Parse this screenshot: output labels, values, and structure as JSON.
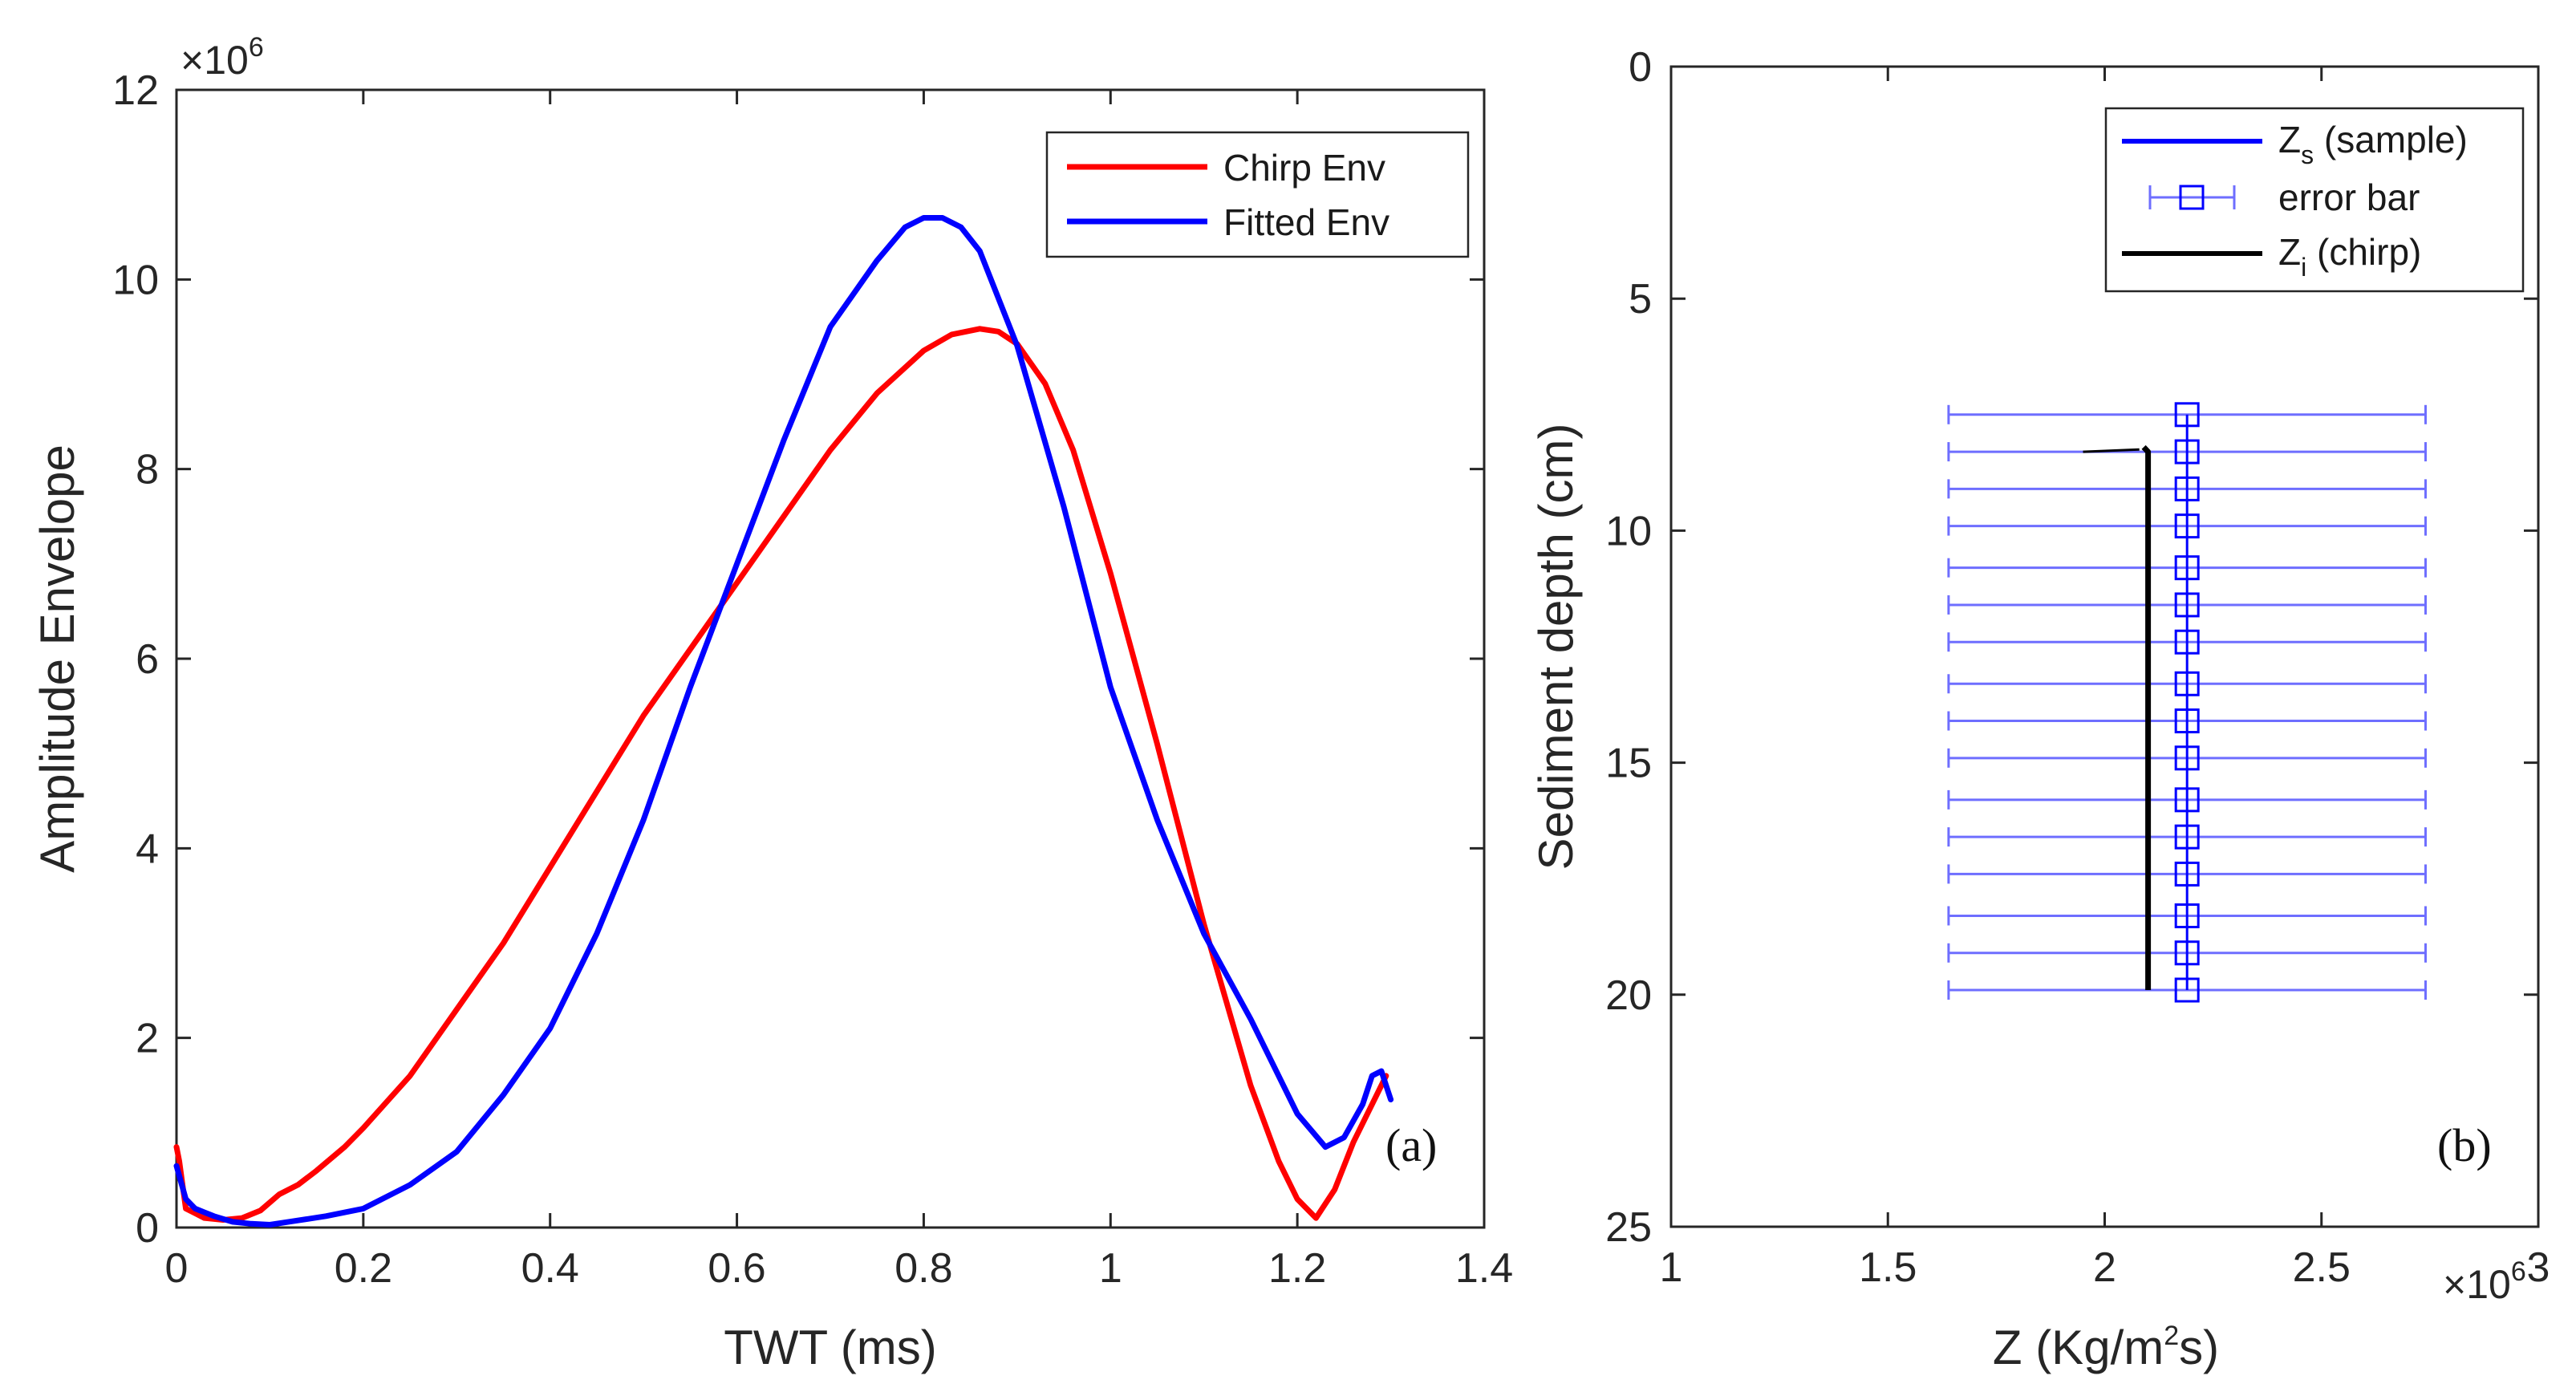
{
  "chart_data": [
    {
      "type": "line",
      "panel_label": "(a)",
      "xlabel": "TWT (ms)",
      "ylabel": "Amplitude Envelope",
      "xlim": [
        0,
        1.4
      ],
      "ylim": [
        0,
        12000000
      ],
      "xticks": [
        0,
        0.2,
        0.4,
        0.6,
        0.8,
        1,
        1.2,
        1.4
      ],
      "xtick_labels": [
        "0",
        "0.2",
        "0.4",
        "0.6",
        "0.8",
        "1",
        "1.2",
        "1.4"
      ],
      "yticks": [
        0,
        2000000,
        4000000,
        6000000,
        8000000,
        10000000,
        12000000
      ],
      "ytick_labels": [
        "0",
        "2",
        "4",
        "6",
        "8",
        "10",
        "12"
      ],
      "y_exponent": {
        "base": "×10",
        "power": "6"
      },
      "grid": false,
      "legend_position": "top-right",
      "series": [
        {
          "name": "Chirp Env",
          "color": "#ff0000",
          "x": [
            0,
            0.003,
            0.01,
            0.02,
            0.03,
            0.05,
            0.07,
            0.09,
            0.11,
            0.13,
            0.15,
            0.18,
            0.2,
            0.25,
            0.3,
            0.35,
            0.4,
            0.45,
            0.5,
            0.55,
            0.6,
            0.65,
            0.7,
            0.75,
            0.8,
            0.83,
            0.86,
            0.88,
            0.9,
            0.93,
            0.96,
            1.0,
            1.05,
            1.1,
            1.15,
            1.18,
            1.2,
            1.22,
            1.24,
            1.26,
            1.28,
            1.295
          ],
          "y": [
            850000,
            700000,
            200000,
            150000,
            100000,
            80000,
            100000,
            180000,
            350000,
            450000,
            600000,
            850000,
            1050000,
            1600000,
            2300000,
            3000000,
            3800000,
            4600000,
            5400000,
            6100000,
            6800000,
            7500000,
            8200000,
            8800000,
            9250000,
            9420000,
            9480000,
            9450000,
            9320000,
            8900000,
            8200000,
            6900000,
            5100000,
            3200000,
            1500000,
            700000,
            300000,
            100000,
            400000,
            900000,
            1300000,
            1600000
          ]
        },
        {
          "name": "Fitted Env",
          "color": "#0000ff",
          "x": [
            0,
            0.01,
            0.02,
            0.04,
            0.06,
            0.08,
            0.1,
            0.12,
            0.14,
            0.16,
            0.2,
            0.25,
            0.3,
            0.35,
            0.4,
            0.45,
            0.5,
            0.55,
            0.6,
            0.65,
            0.7,
            0.75,
            0.78,
            0.8,
            0.82,
            0.84,
            0.86,
            0.9,
            0.95,
            1.0,
            1.05,
            1.1,
            1.15,
            1.2,
            1.23,
            1.25,
            1.27,
            1.28,
            1.29,
            1.3
          ],
          "y": [
            650000,
            300000,
            200000,
            120000,
            60000,
            40000,
            30000,
            60000,
            90000,
            120000,
            200000,
            450000,
            800000,
            1400000,
            2100000,
            3100000,
            4300000,
            5700000,
            7000000,
            8300000,
            9500000,
            10200000,
            10550000,
            10650000,
            10650000,
            10550000,
            10300000,
            9300000,
            7600000,
            5700000,
            4300000,
            3100000,
            2200000,
            1200000,
            850000,
            950000,
            1300000,
            1600000,
            1650000,
            1350000
          ]
        }
      ]
    },
    {
      "type": "line",
      "panel_label": "(b)",
      "xlabel_parts": {
        "pre": "Z (Kg/m",
        "sup": "2",
        "post": "s)"
      },
      "ylabel": "Sediment depth (cm)",
      "xlim": [
        1000000,
        3000000
      ],
      "ylim": [
        0,
        25
      ],
      "y_reversed": true,
      "xticks": [
        1000000,
        1500000,
        2000000,
        2500000,
        3000000
      ],
      "xtick_labels": [
        "1",
        "1.5",
        "2",
        "2.5",
        "3"
      ],
      "yticks": [
        0,
        5,
        10,
        15,
        20,
        25
      ],
      "ytick_labels": [
        "0",
        "5",
        "10",
        "15",
        "20",
        "25"
      ],
      "x_exponent": {
        "base": "×10",
        "power": "6"
      },
      "grid": false,
      "legend_position": "top-right",
      "legend": [
        {
          "main": "Z",
          "sub": "s",
          "rest": " (sample)",
          "style": "line",
          "color": "#0000ff"
        },
        {
          "main": "error bar",
          "sub": "",
          "rest": "",
          "style": "errorbar",
          "color": "#6e6eff"
        },
        {
          "main": "Z",
          "sub": "i",
          "rest": " (chirp)",
          "style": "line",
          "color": "#000000"
        }
      ],
      "sample": {
        "color": "#0000ff",
        "errorbar_color": "#6e6eff",
        "z": 2190000,
        "z_error": 550000,
        "depths": [
          7.5,
          8.3,
          9.1,
          9.9,
          10.8,
          11.6,
          12.4,
          13.3,
          14.1,
          14.9,
          15.8,
          16.6,
          17.4,
          18.3,
          19.1,
          19.9
        ]
      },
      "chirp": {
        "color": "#000000",
        "x": [
          2090000,
          2100000,
          2100000
        ],
        "y": [
          8.2,
          8.3,
          19.9
        ],
        "spike_x": [
          1950000,
          2080000
        ],
        "spike_y": [
          8.3,
          8.25
        ]
      }
    }
  ]
}
